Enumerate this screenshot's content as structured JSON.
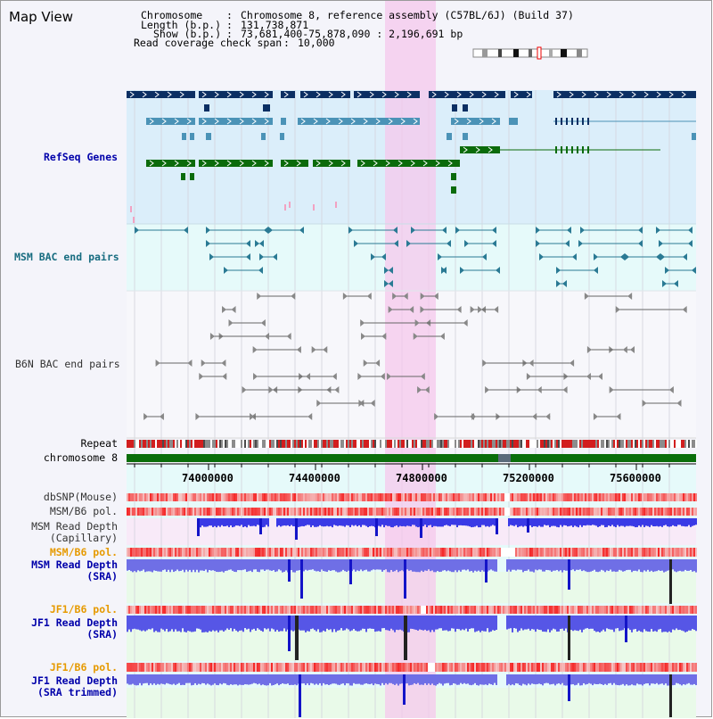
{
  "title": "Map View",
  "header": {
    "chromosome_key": "Chromosome",
    "chromosome_val": "Chromosome 8, reference assembly (C57BL/6J) (Build 37)",
    "length_key": "Length (b.p.)",
    "length_val": "131,738,871",
    "show_key": "Show (b.p.)",
    "show_val": "73,681,400-75,878,090 : 2,196,691 bp",
    "coverage_key": "Read coverage check span",
    "coverage_val": "10,000"
  },
  "tracks": {
    "refseq": "RefSeq Genes",
    "msm_bac": "MSM BAC end pairs",
    "b6n_bac": "B6N BAC end pairs",
    "repeat": "Repeat",
    "chromosome": "chromosome 8",
    "dbsnp": "dbSNP(Mouse)",
    "msm_b6_pol_1": "MSM/B6 pol.",
    "msm_depth_cap": "MSM Read Depth\n(Capillary)",
    "msm_b6_pol_2": "MSM/B6 pol.",
    "msm_depth_sra": "MSM Read Depth\n(SRA)",
    "jf1_b6_pol_1": "JF1/B6 pol.",
    "jf1_depth_sra": "JF1 Read Depth\n(SRA)",
    "jf1_b6_pol_2": "JF1/B6 pol.",
    "jf1_depth_trim": "JF1 Read Depth\n(SRA trimmed)"
  },
  "ruler_ticks": [
    "74000000",
    "74400000",
    "74800000",
    "75200000",
    "75600000"
  ],
  "colors": {
    "refseq_bg": "#dbeefa",
    "msm_bac_bg": "#e6fafa",
    "highlight": "#f6c8ec",
    "gene_dark": "#0b2f63",
    "gene_mid": "#4b93b7",
    "gene_green": "#0b6b0b",
    "msm_bac": "#2a7a94",
    "b6n_bac": "#666666",
    "depth_blue": "#2a2ae6",
    "label_blue": "#0000aa",
    "label_orange": "#e69a00",
    "chrom_green": "#0a6e0a"
  }
}
